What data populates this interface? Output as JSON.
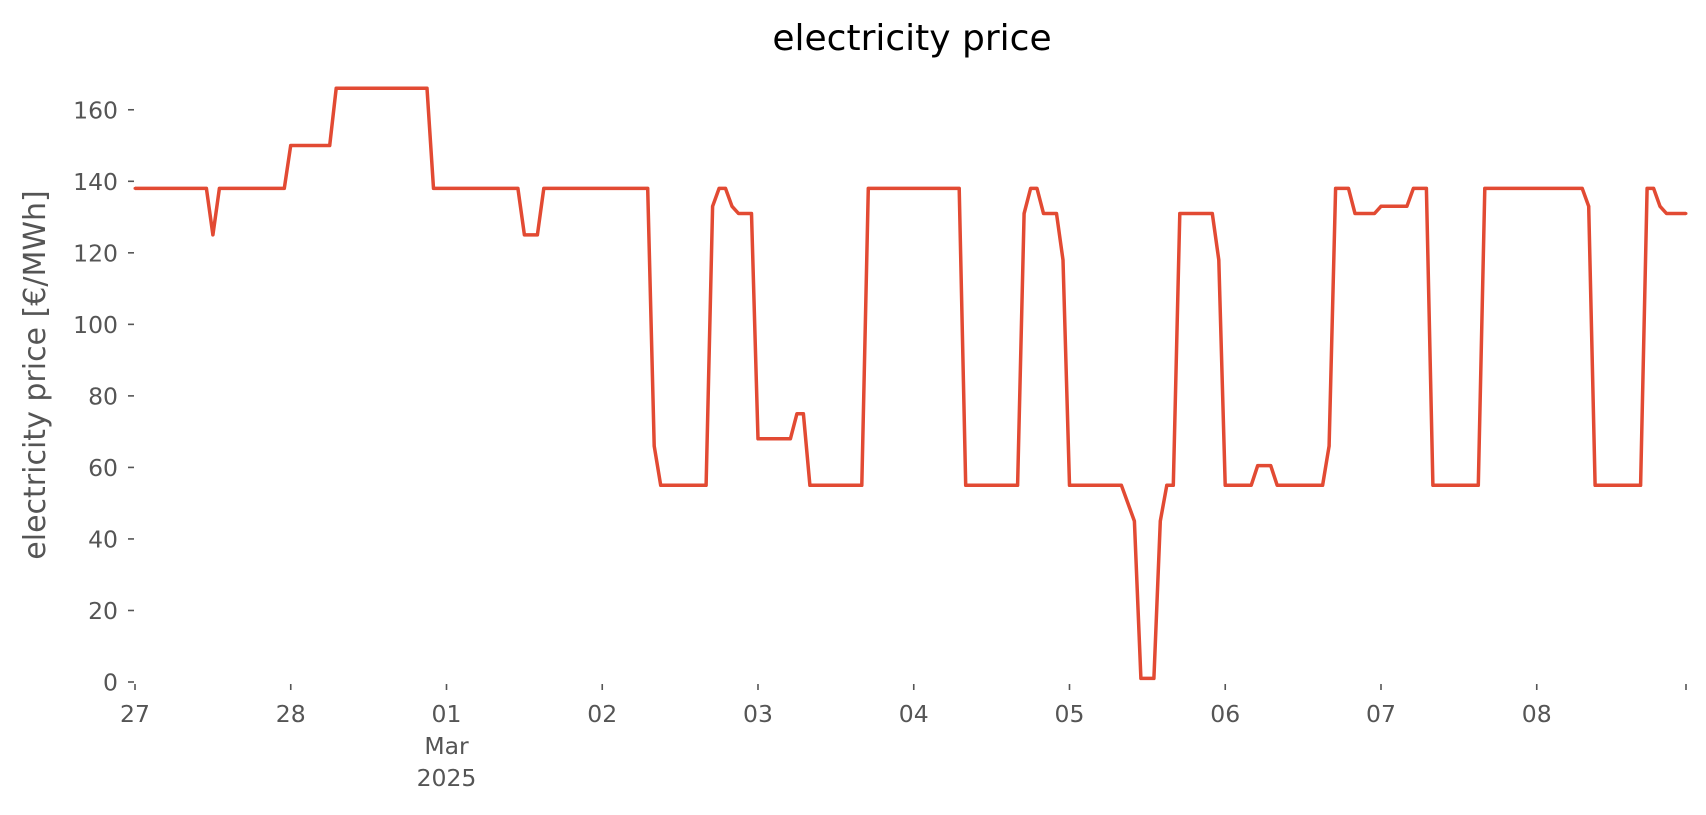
{
  "chart_data": {
    "type": "line",
    "title": "electricity price",
    "xlabel": "",
    "ylabel": "electricity price [€/MWh]",
    "ylim": [
      0,
      170
    ],
    "xlim": [
      "2025-02-27T00:00",
      "2025-03-08T23:00"
    ],
    "grid": false,
    "legend": "none",
    "colors": {
      "series": "#e24a33",
      "text": "#555555",
      "title": "#000000"
    },
    "yticks": [
      {
        "value": 0,
        "label": "0"
      },
      {
        "value": 20,
        "label": "20"
      },
      {
        "value": 40,
        "label": "40"
      },
      {
        "value": 60,
        "label": "60"
      },
      {
        "value": 80,
        "label": "80"
      },
      {
        "value": 100,
        "label": "100"
      },
      {
        "value": 120,
        "label": "120"
      },
      {
        "value": 140,
        "label": "140"
      },
      {
        "value": 160,
        "label": "160"
      }
    ],
    "xticks": [
      {
        "date": "2025-02-27T00:00",
        "lines": [
          "27"
        ]
      },
      {
        "date": "2025-02-28T00:00",
        "lines": [
          "28"
        ]
      },
      {
        "date": "2025-03-01T00:00",
        "lines": [
          "01",
          "Mar",
          "2025"
        ]
      },
      {
        "date": "2025-03-02T00:00",
        "lines": [
          "02"
        ]
      },
      {
        "date": "2025-03-03T00:00",
        "lines": [
          "03"
        ]
      },
      {
        "date": "2025-03-04T00:00",
        "lines": [
          "04"
        ]
      },
      {
        "date": "2025-03-05T00:00",
        "lines": [
          "05"
        ]
      },
      {
        "date": "2025-03-06T00:00",
        "lines": [
          "06"
        ]
      },
      {
        "date": "2025-03-07T00:00",
        "lines": [
          "07"
        ]
      },
      {
        "date": "2025-03-08T00:00",
        "lines": [
          "08"
        ]
      },
      {
        "date": "2025-03-08T23:00",
        "lines": [
          ""
        ]
      }
    ],
    "series": [
      {
        "points": [
          [
            "2025-02-27T00:00",
            138
          ],
          [
            "2025-02-27T11:00",
            138
          ],
          [
            "2025-02-27T12:00",
            125
          ],
          [
            "2025-02-27T13:00",
            138
          ],
          [
            "2025-02-27T23:00",
            138
          ],
          [
            "2025-02-28T00:00",
            150
          ],
          [
            "2025-02-28T06:00",
            150
          ],
          [
            "2025-02-28T07:00",
            166
          ],
          [
            "2025-02-28T21:00",
            166
          ],
          [
            "2025-02-28T22:00",
            138
          ],
          [
            "2025-03-01T11:00",
            138
          ],
          [
            "2025-03-01T12:00",
            125
          ],
          [
            "2025-03-01T14:00",
            125
          ],
          [
            "2025-03-01T15:00",
            138
          ],
          [
            "2025-03-02T07:00",
            138
          ],
          [
            "2025-03-02T08:00",
            66
          ],
          [
            "2025-03-02T09:00",
            55
          ],
          [
            "2025-03-02T16:00",
            55
          ],
          [
            "2025-03-02T17:00",
            133
          ],
          [
            "2025-03-02T18:00",
            138
          ],
          [
            "2025-03-02T19:00",
            138
          ],
          [
            "2025-03-02T20:00",
            133
          ],
          [
            "2025-03-02T21:00",
            131
          ],
          [
            "2025-03-02T23:00",
            131
          ],
          [
            "2025-03-03T00:00",
            68
          ],
          [
            "2025-03-03T05:00",
            68
          ],
          [
            "2025-03-03T06:00",
            75
          ],
          [
            "2025-03-03T07:00",
            75
          ],
          [
            "2025-03-03T08:00",
            55
          ],
          [
            "2025-03-03T16:00",
            55
          ],
          [
            "2025-03-03T17:00",
            138
          ],
          [
            "2025-03-04T07:00",
            138
          ],
          [
            "2025-03-04T08:00",
            55
          ],
          [
            "2025-03-04T16:00",
            55
          ],
          [
            "2025-03-04T17:00",
            131
          ],
          [
            "2025-03-04T18:00",
            138
          ],
          [
            "2025-03-04T19:00",
            138
          ],
          [
            "2025-03-04T20:00",
            131
          ],
          [
            "2025-03-04T22:00",
            131
          ],
          [
            "2025-03-04T23:00",
            118
          ],
          [
            "2025-03-05T00:00",
            55
          ],
          [
            "2025-03-05T08:00",
            55
          ],
          [
            "2025-03-05T10:00",
            45
          ],
          [
            "2025-03-05T11:00",
            1
          ],
          [
            "2025-03-05T13:00",
            1
          ],
          [
            "2025-03-05T14:00",
            45
          ],
          [
            "2025-03-05T15:00",
            55
          ],
          [
            "2025-03-05T16:00",
            55
          ],
          [
            "2025-03-05T17:00",
            131
          ],
          [
            "2025-03-05T22:00",
            131
          ],
          [
            "2025-03-05T23:00",
            118
          ],
          [
            "2025-03-06T00:00",
            55
          ],
          [
            "2025-03-06T04:00",
            55
          ],
          [
            "2025-03-06T05:00",
            60.5
          ],
          [
            "2025-03-06T07:00",
            60.5
          ],
          [
            "2025-03-06T08:00",
            55
          ],
          [
            "2025-03-06T15:00",
            55
          ],
          [
            "2025-03-06T16:00",
            66
          ],
          [
            "2025-03-06T17:00",
            138
          ],
          [
            "2025-03-06T19:00",
            138
          ],
          [
            "2025-03-06T20:00",
            131
          ],
          [
            "2025-03-06T23:00",
            131
          ],
          [
            "2025-03-07T00:00",
            133
          ],
          [
            "2025-03-07T04:00",
            133
          ],
          [
            "2025-03-07T05:00",
            138
          ],
          [
            "2025-03-07T07:00",
            138
          ],
          [
            "2025-03-07T08:00",
            55
          ],
          [
            "2025-03-07T15:00",
            55
          ],
          [
            "2025-03-07T16:00",
            138
          ],
          [
            "2025-03-08T07:00",
            138
          ],
          [
            "2025-03-08T08:00",
            133
          ],
          [
            "2025-03-08T09:00",
            55
          ],
          [
            "2025-03-08T16:00",
            55
          ],
          [
            "2025-03-08T17:00",
            138
          ],
          [
            "2025-03-08T18:00",
            138
          ],
          [
            "2025-03-08T19:00",
            133
          ],
          [
            "2025-03-08T20:00",
            131
          ],
          [
            "2025-03-08T23:00",
            131
          ]
        ]
      }
    ]
  }
}
